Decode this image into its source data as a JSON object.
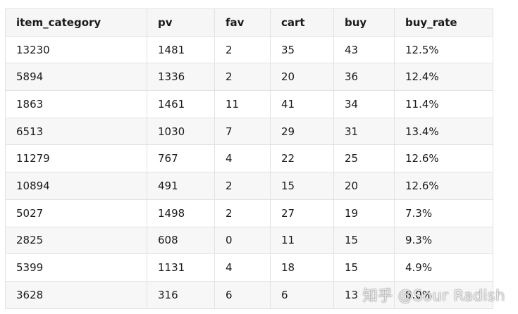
{
  "table": {
    "headers": [
      "item_category",
      "pv",
      "fav",
      "cart",
      "buy",
      "buy_rate"
    ],
    "rows": [
      [
        "13230",
        "1481",
        "2",
        "35",
        "43",
        "12.5%"
      ],
      [
        "5894",
        "1336",
        "2",
        "20",
        "36",
        "12.4%"
      ],
      [
        "1863",
        "1461",
        "11",
        "41",
        "34",
        "11.4%"
      ],
      [
        "6513",
        "1030",
        "7",
        "29",
        "31",
        "13.4%"
      ],
      [
        "11279",
        "767",
        "4",
        "22",
        "25",
        "12.6%"
      ],
      [
        "10894",
        "491",
        "2",
        "15",
        "20",
        "12.6%"
      ],
      [
        "5027",
        "1498",
        "2",
        "27",
        "19",
        "7.3%"
      ],
      [
        "2825",
        "608",
        "0",
        "11",
        "15",
        "9.3%"
      ],
      [
        "5399",
        "1131",
        "4",
        "18",
        "15",
        "4.9%"
      ],
      [
        "3628",
        "316",
        "6",
        "6",
        "13",
        "8.0%"
      ]
    ]
  },
  "watermark": "知乎 @Sour Radish"
}
